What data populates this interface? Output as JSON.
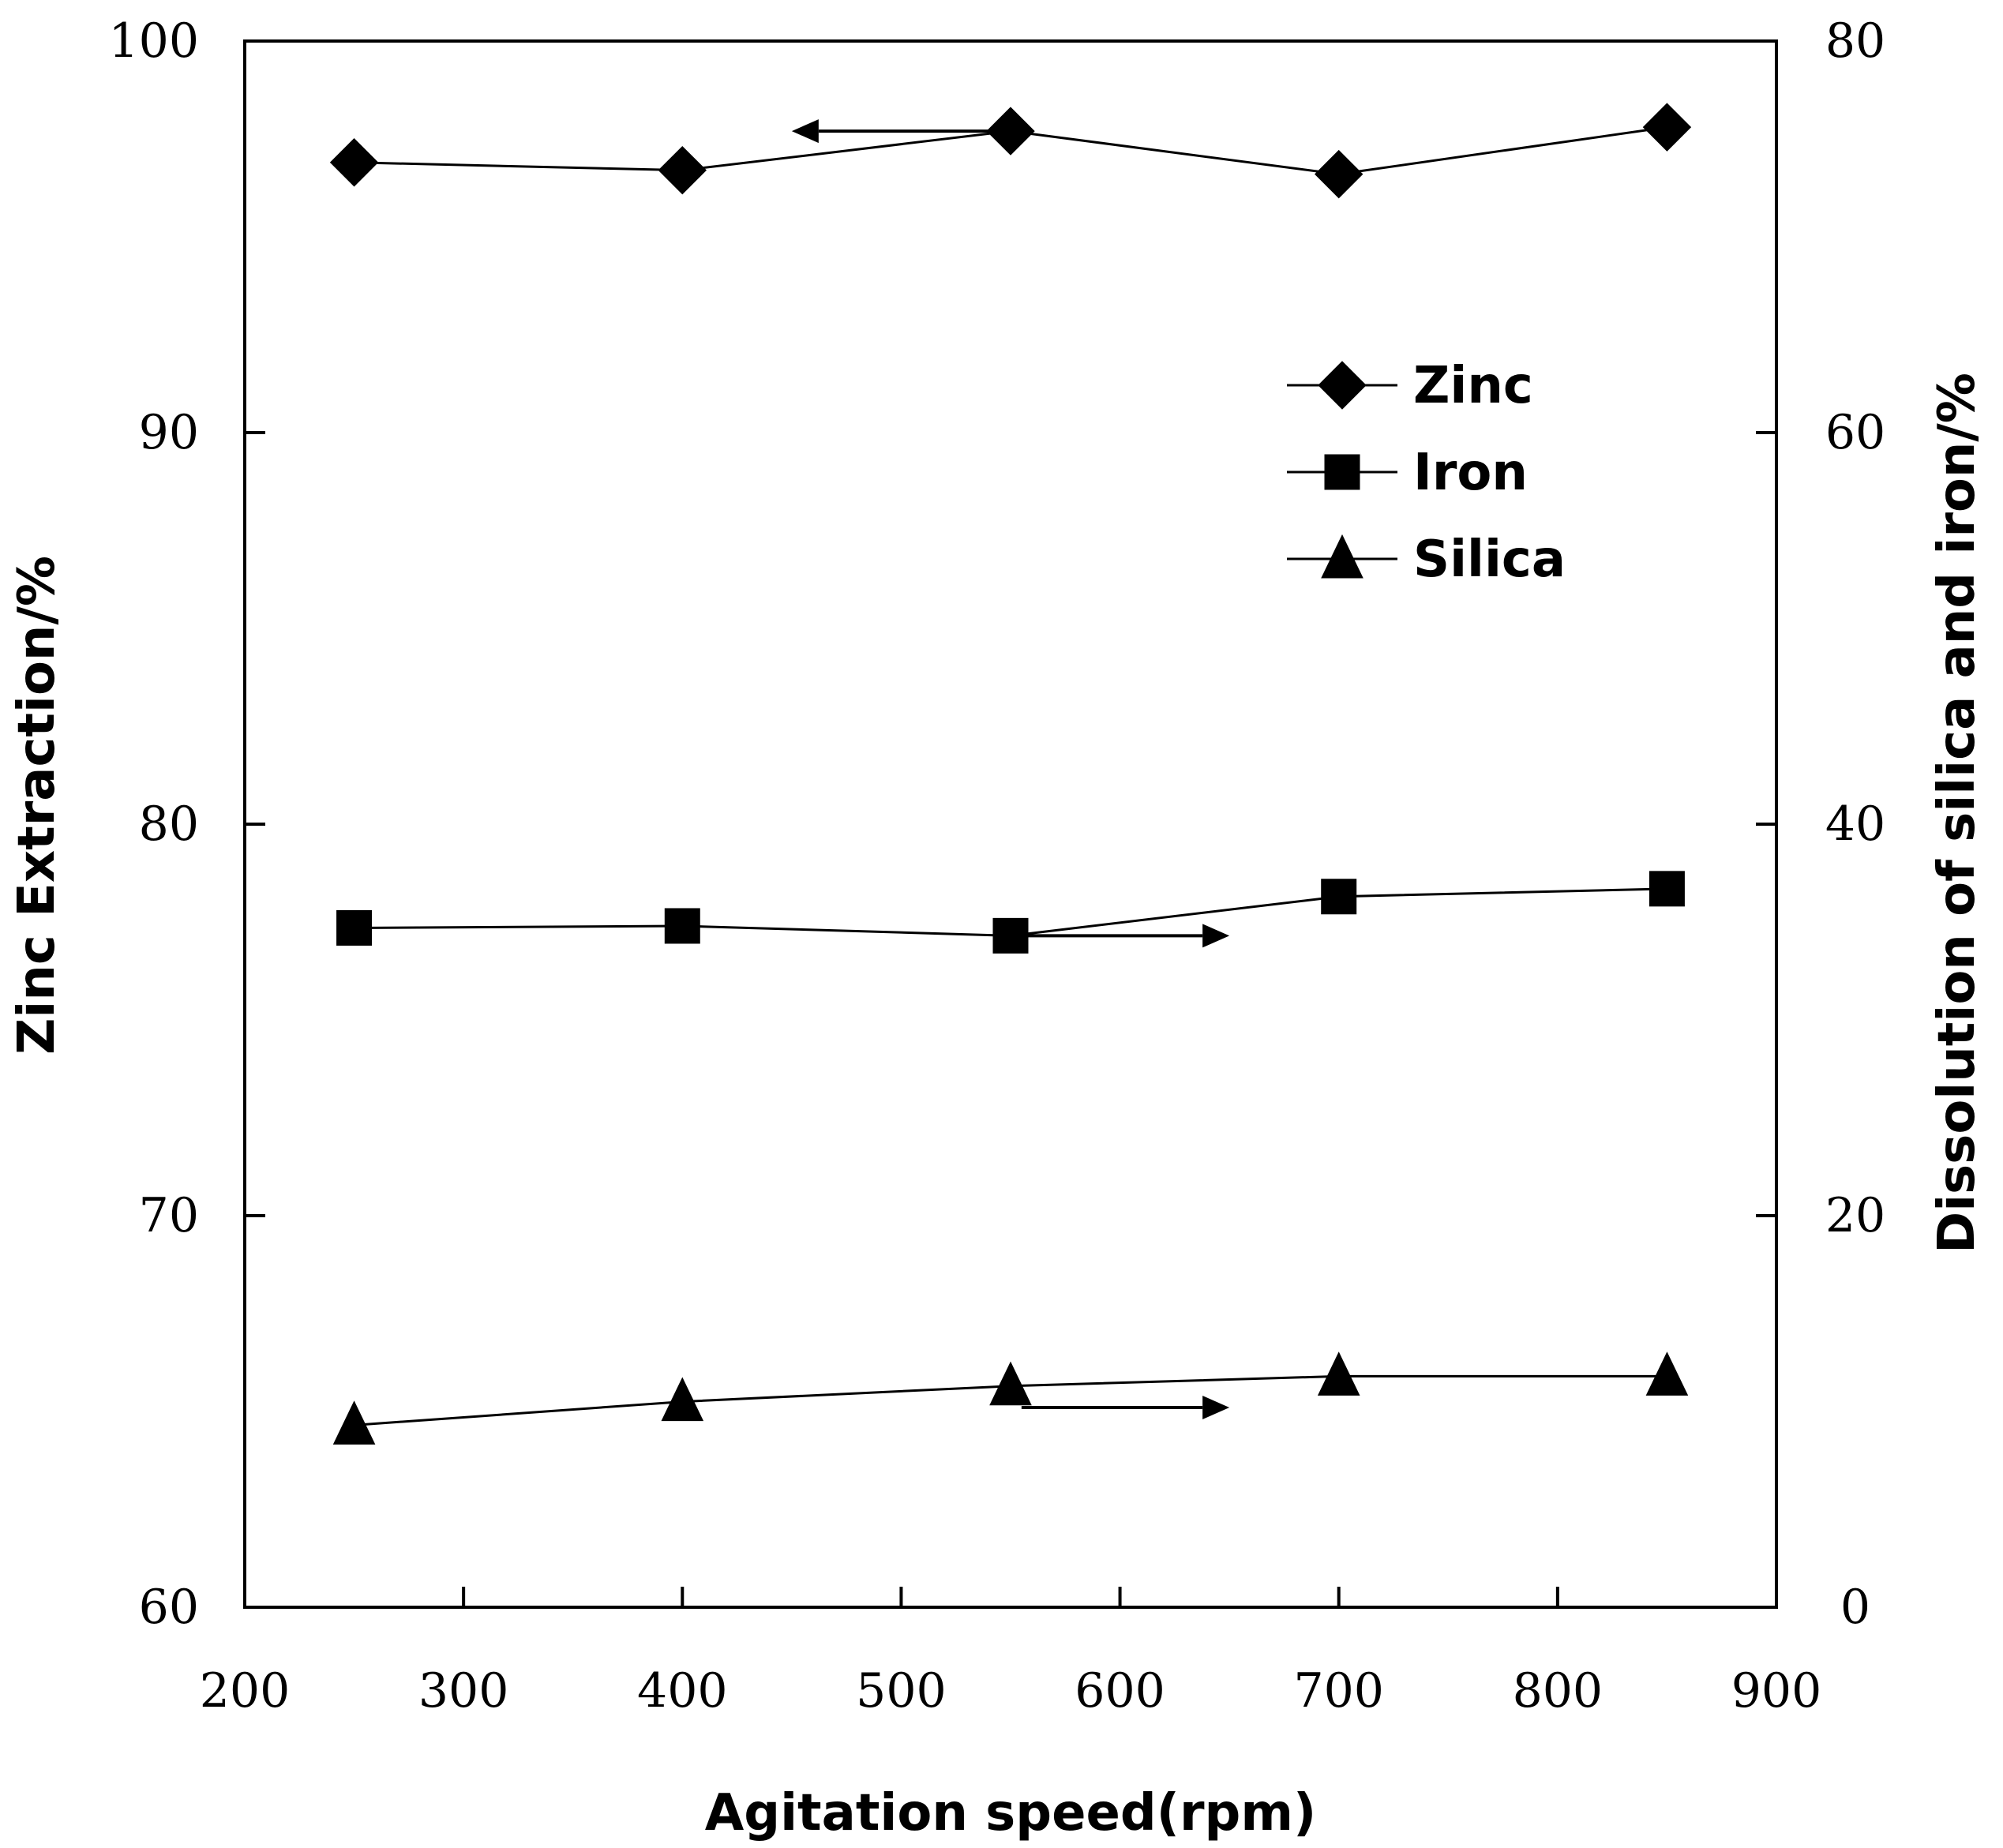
{
  "chart_data": {
    "type": "line",
    "title": "",
    "xlabel": "Agitation speed(rpm)",
    "ylabel": "Zinc Extraction/%",
    "y2label": "Dissolution of silica and iron/%",
    "xlim": [
      200,
      900
    ],
    "ylim": [
      60,
      100
    ],
    "y2lim": [
      0,
      80
    ],
    "x_ticks": [
      "200",
      "300",
      "400",
      "500",
      "600",
      "700",
      "800",
      "900"
    ],
    "y_ticks": [
      "60",
      "70",
      "80",
      "90",
      "100"
    ],
    "y2_ticks": [
      "0",
      "20",
      "40",
      "60",
      "80"
    ],
    "grid": false,
    "legend_position": "upper-right",
    "x": [
      250,
      400,
      550,
      700,
      850
    ],
    "series": [
      {
        "name": "Zinc",
        "axis": "left",
        "marker": "diamond",
        "values": [
          96.9,
          96.7,
          97.7,
          96.6,
          97.8
        ]
      },
      {
        "name": "Iron",
        "axis": "right",
        "marker": "square",
        "values": [
          34.7,
          34.8,
          34.3,
          36.3,
          36.7
        ]
      },
      {
        "name": "Silica",
        "axis": "right",
        "marker": "triangle",
        "values": [
          9.3,
          10.5,
          11.3,
          11.8,
          11.8
        ]
      }
    ],
    "annotations": [
      {
        "type": "arrow",
        "direction": "left",
        "points_to": "left-axis",
        "series": "Zinc",
        "from_x": 555,
        "to_x": 450,
        "y": 97.7
      },
      {
        "type": "arrow",
        "direction": "right",
        "points_to": "right-axis",
        "series": "Iron",
        "from_x": 555,
        "to_x": 650,
        "y": 34.3
      },
      {
        "type": "arrow",
        "direction": "right",
        "points_to": "right-axis",
        "series": "Silica",
        "from_x": 555,
        "to_x": 650,
        "y": 10.2
      }
    ]
  }
}
